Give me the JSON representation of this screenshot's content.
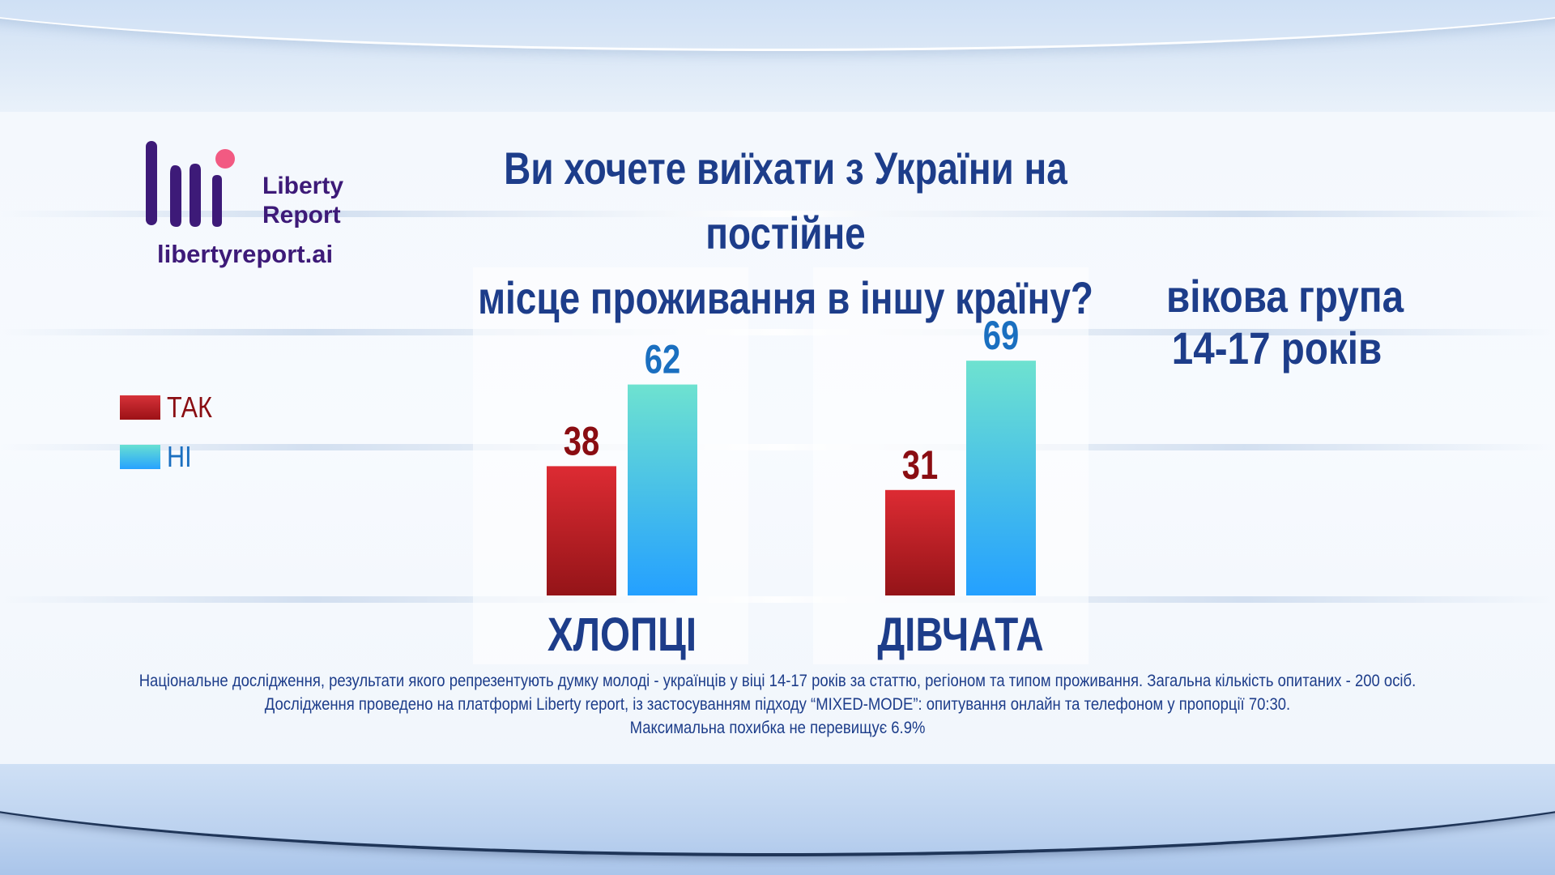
{
  "brand": {
    "name_line1": "Liberty",
    "name_line2": "Report",
    "url": "libertyreport.ai"
  },
  "title_line1": "Ви хочете виїхати з України на постійне",
  "title_line2": "місце проживання в іншу країну?",
  "age_group": {
    "line1": "вікова група",
    "line2": "14-17 років"
  },
  "legend": [
    {
      "label": "ТАК",
      "color": "#c0202a",
      "text_color": "#8a0d12"
    },
    {
      "label": "НІ",
      "color": "#3fb8e0",
      "text_color": "#1a6fc0"
    }
  ],
  "chart_data": {
    "type": "bar",
    "categories": [
      "ХЛОПЦІ",
      "ДІВЧАТА"
    ],
    "series": [
      {
        "name": "ТАК",
        "values": [
          38,
          31
        ]
      },
      {
        "name": "НІ",
        "values": [
          62,
          69
        ]
      }
    ],
    "ylim": [
      0,
      100
    ],
    "grid": false,
    "legend_position": "left"
  },
  "footnote": {
    "line1": "Національне  дослідження, результати якого репрезентують думку молоді -  українців у віці 14-17 років за статтю, регіоном та типом проживання. Загальна кількість опитаних - 200 осіб.",
    "line2": "Дослідження проведено на платформі Liberty report, із застосуванням підходу “MIXED-MODE”: опитування онлайн та телефоном у пропорції 70:30.",
    "line3": "Максимальна похибка не перевищує 6.9%"
  }
}
